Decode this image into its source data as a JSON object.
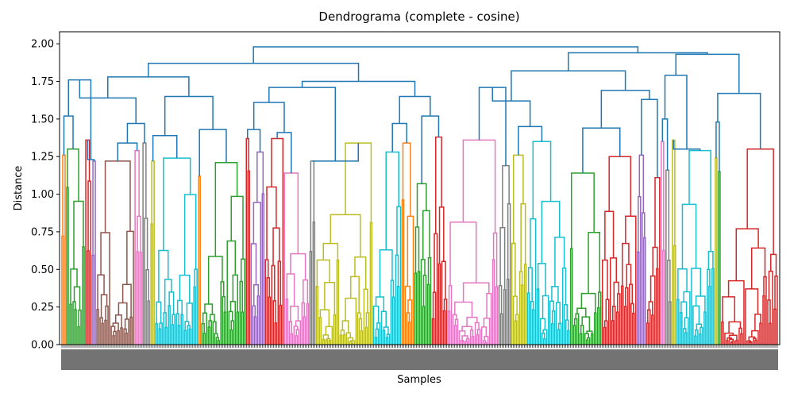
{
  "chart_data": {
    "type": "dendrogram",
    "title": "Dendrograma (complete - cosine)",
    "xlabel": "Samples",
    "ylabel": "Distance",
    "ylim": [
      0,
      2.08
    ],
    "yticks": [
      0.0,
      0.25,
      0.5,
      0.75,
      1.0,
      1.25,
      1.5,
      1.75,
      2.0
    ],
    "ytick_labels": [
      "0.00",
      "0.25",
      "0.50",
      "0.75",
      "1.00",
      "1.25",
      "1.50",
      "1.75",
      "2.00"
    ],
    "grid": false,
    "above_threshold_color": "#1f77b4",
    "cluster_colors": {
      "orange": "#ff7f0e",
      "green": "#2ca02c",
      "red": "#d62728",
      "purple": "#9467bd",
      "brown": "#8c564b",
      "pink": "#e377c2",
      "gray": "#7f7f7f",
      "olive": "#bcbd22",
      "cyan": "#17becf"
    },
    "clusters": [
      {
        "color": "#ff7f0e",
        "height": 1.26,
        "leaves": 3
      },
      {
        "color": "#2ca02c",
        "height": 1.3,
        "leaves": 12
      },
      {
        "color": "#d62728",
        "height": 1.36,
        "leaves": 4
      },
      {
        "color": "#9467bd",
        "height": 1.22,
        "leaves": 3
      },
      {
        "color": "#8c564b",
        "height": 1.22,
        "leaves": 24
      },
      {
        "color": "#e377c2",
        "height": 1.29,
        "leaves": 5
      },
      {
        "color": "#7f7f7f",
        "height": 1.34,
        "leaves": 5
      },
      {
        "color": "#bcbd22",
        "height": 1.22,
        "leaves": 3
      },
      {
        "color": "#17becf",
        "height": 1.24,
        "leaves": 27
      },
      {
        "color": "#ff7f0e",
        "height": 1.12,
        "leaves": 2
      },
      {
        "color": "#2ca02c",
        "height": 1.21,
        "leaves": 28
      },
      {
        "color": "#d62728",
        "height": 1.37,
        "leaves": 3
      },
      {
        "color": "#9467bd",
        "height": 1.28,
        "leaves": 9
      },
      {
        "color": "#d62728",
        "height": 1.37,
        "leaves": 12
      },
      {
        "color": "#e377c2",
        "height": 1.14,
        "leaves": 16
      },
      {
        "color": "#7f7f7f",
        "height": 1.22,
        "leaves": 4
      },
      {
        "color": "#bcbd22",
        "height": 1.34,
        "leaves": 36
      },
      {
        "color": "#17becf",
        "height": 1.28,
        "leaves": 18
      },
      {
        "color": "#ff7f0e",
        "height": 1.34,
        "leaves": 8
      },
      {
        "color": "#2ca02c",
        "height": 1.07,
        "leaves": 11
      },
      {
        "color": "#d62728",
        "height": 1.38,
        "leaves": 10
      },
      {
        "color": "#e377c2",
        "height": 1.36,
        "leaves": 32
      },
      {
        "color": "#7f7f7f",
        "height": 1.19,
        "leaves": 8
      },
      {
        "color": "#bcbd22",
        "height": 1.26,
        "leaves": 10
      },
      {
        "color": "#17becf",
        "height": 1.35,
        "leaves": 27
      },
      {
        "color": "#2ca02c",
        "height": 1.14,
        "leaves": 20
      },
      {
        "color": "#d62728",
        "height": 1.25,
        "leaves": 22
      },
      {
        "color": "#9467bd",
        "height": 1.26,
        "leaves": 6
      },
      {
        "color": "#d62728",
        "height": 1.11,
        "leaves": 9
      },
      {
        "color": "#e377c2",
        "height": 1.35,
        "leaves": 3
      },
      {
        "color": "#7f7f7f",
        "height": 1.16,
        "leaves": 4
      },
      {
        "color": "#bcbd22",
        "height": 1.36,
        "leaves": 3
      },
      {
        "color": "#17becf",
        "height": 1.29,
        "leaves": 24
      },
      {
        "color": "#bcbd22",
        "height": 1.24,
        "leaves": 2
      },
      {
        "color": "#2ca02c",
        "height": 1.15,
        "leaves": 2
      },
      {
        "color": "#d62728",
        "height": 1.3,
        "leaves": 36
      }
    ],
    "top_links": [
      {
        "a": 0,
        "b": 1,
        "h": 1.52
      },
      {
        "a": 2,
        "b": 3,
        "h": 1.23
      },
      {
        "a": "L0",
        "b": "L1",
        "h": 1.76
      },
      {
        "a": 4,
        "b": 5,
        "h": 1.34
      },
      {
        "a": "L3",
        "b": 6,
        "h": 1.47
      },
      {
        "a": "L2",
        "b": "L4",
        "h": 1.64
      },
      {
        "a": 7,
        "b": 8,
        "h": 1.39
      },
      {
        "a": 9,
        "b": 10,
        "h": 1.43
      },
      {
        "a": "L6",
        "b": "L7",
        "h": 1.65
      },
      {
        "a": "L5",
        "b": "L8",
        "h": 1.78
      },
      {
        "a": 11,
        "b": 12,
        "h": 1.43
      },
      {
        "a": 13,
        "b": 14,
        "h": 1.41
      },
      {
        "a": "L10",
        "b": "L11",
        "h": 1.61
      },
      {
        "a": 15,
        "b": 16,
        "h": 1.22
      },
      {
        "a": "L12",
        "b": "L13",
        "h": 1.71
      },
      {
        "a": 17,
        "b": 18,
        "h": 1.47
      },
      {
        "a": 19,
        "b": 20,
        "h": 1.52
      },
      {
        "a": "L15",
        "b": "L16",
        "h": 1.65
      },
      {
        "a": "L14",
        "b": "L17",
        "h": 1.75
      },
      {
        "a": "L9",
        "b": "L18",
        "h": 1.87
      },
      {
        "a": 21,
        "b": 22,
        "h": 1.71
      },
      {
        "a": 23,
        "b": 24,
        "h": 1.45
      },
      {
        "a": "L20",
        "b": "L21",
        "h": 1.62
      },
      {
        "a": 25,
        "b": 26,
        "h": 1.44
      },
      {
        "a": 27,
        "b": 28,
        "h": 1.63
      },
      {
        "a": "L23",
        "b": "L24",
        "h": 1.69
      },
      {
        "a": "L22",
        "b": "L25",
        "h": 1.82
      },
      {
        "a": 29,
        "b": 30,
        "h": 1.5
      },
      {
        "a": 31,
        "b": 32,
        "h": 1.3
      },
      {
        "a": "L27",
        "b": "L28",
        "h": 1.79
      },
      {
        "a": 33,
        "b": 34,
        "h": 1.48
      },
      {
        "a": "L30",
        "b": 35,
        "h": 1.67
      },
      {
        "a": "L29",
        "b": "L31",
        "h": 1.93
      },
      {
        "a": "L26",
        "b": "L32",
        "h": 1.94
      },
      {
        "a": "L19",
        "b": "L33",
        "h": 1.98
      }
    ]
  }
}
